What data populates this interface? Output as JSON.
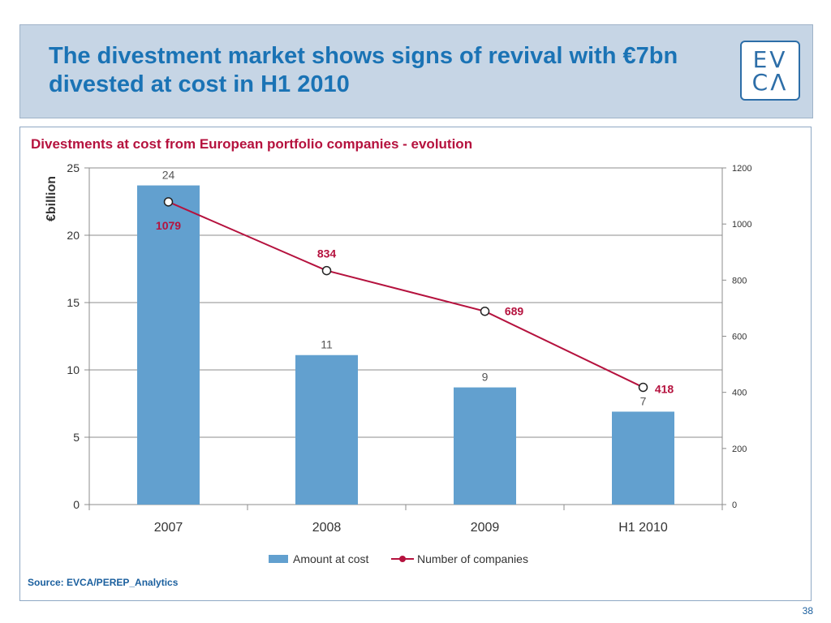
{
  "slide": {
    "title": "The divestment market shows signs of revival with €7bn divested at cost in H1 2010",
    "source": "Source: EVCA/PEREP_Analytics",
    "page_number": "38"
  },
  "logo": {
    "line1": "EV",
    "line2": "CΛ"
  },
  "colors": {
    "bar": "#62a0cf",
    "line": "#b5123e",
    "title": "#1a73b5",
    "header_band": "#c6d5e5"
  },
  "chart_data": {
    "type": "bar",
    "title": "Divestments at cost from European portfolio companies - evolution",
    "categories": [
      "2007",
      "2008",
      "2009",
      "H1 2010"
    ],
    "ylabel": "€billion",
    "ylim": [
      0,
      25
    ],
    "yticks": [
      0,
      5,
      10,
      15,
      20,
      25
    ],
    "y2lim": [
      0,
      1200
    ],
    "y2ticks": [
      0,
      200,
      400,
      600,
      800,
      1000,
      1200
    ],
    "grid": true,
    "legend_position": "bottom",
    "series": [
      {
        "name": "Amount at cost",
        "type": "bar",
        "axis": "left",
        "values": [
          23.7,
          11.1,
          8.7,
          6.9
        ],
        "labels": [
          "24",
          "11",
          "9",
          "7"
        ]
      },
      {
        "name": "Number of companies",
        "type": "line",
        "axis": "right",
        "values": [
          1079,
          834,
          689,
          418
        ],
        "labels": [
          "1079",
          "834",
          "689",
          "418"
        ]
      }
    ]
  }
}
